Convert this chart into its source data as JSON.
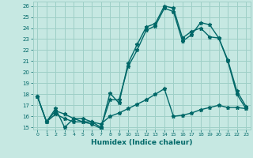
{
  "title": "",
  "xlabel": "Humidex (Indice chaleur)",
  "xlim": [
    -0.5,
    23.5
  ],
  "ylim": [
    14.8,
    26.4
  ],
  "xticks": [
    0,
    1,
    2,
    3,
    4,
    5,
    6,
    7,
    8,
    9,
    10,
    11,
    12,
    13,
    14,
    15,
    16,
    17,
    18,
    19,
    20,
    21,
    22,
    23
  ],
  "yticks": [
    15,
    16,
    17,
    18,
    19,
    20,
    21,
    22,
    23,
    24,
    25,
    26
  ],
  "bg_color": "#c6e8e2",
  "grid_color": "#9ecfc7",
  "line_color": "#006868",
  "line1_x": [
    0,
    1,
    2,
    3,
    4,
    5,
    6,
    7,
    8,
    9,
    10,
    11,
    12,
    13,
    14,
    15,
    16,
    17,
    18,
    19,
    20,
    21,
    22,
    23
  ],
  "line1_y": [
    17.8,
    15.5,
    16.7,
    15.0,
    15.8,
    15.5,
    15.3,
    14.9,
    18.1,
    17.2,
    20.8,
    22.5,
    24.1,
    24.4,
    26.0,
    25.8,
    23.1,
    23.7,
    24.0,
    23.2,
    23.1,
    21.1,
    18.3,
    16.9
  ],
  "line2_x": [
    0,
    1,
    2,
    3,
    4,
    5,
    6,
    7,
    8,
    9,
    10,
    11,
    12,
    13,
    14,
    15,
    16,
    17,
    18,
    19,
    20,
    21,
    22,
    23
  ],
  "line2_y": [
    17.8,
    15.5,
    16.5,
    16.2,
    15.8,
    15.8,
    15.5,
    15.0,
    17.5,
    17.5,
    20.5,
    22.0,
    23.8,
    24.2,
    25.8,
    25.5,
    22.8,
    23.4,
    24.5,
    24.3,
    23.1,
    21.0,
    18.0,
    16.7
  ],
  "line3_x": [
    0,
    1,
    2,
    3,
    4,
    5,
    6,
    7,
    8,
    9,
    10,
    11,
    12,
    13,
    14,
    15,
    16,
    17,
    18,
    19,
    20,
    21,
    22,
    23
  ],
  "line3_y": [
    17.8,
    15.5,
    16.2,
    15.8,
    15.5,
    15.5,
    15.5,
    15.3,
    16.0,
    16.3,
    16.7,
    17.1,
    17.5,
    18.0,
    18.5,
    16.0,
    16.1,
    16.3,
    16.6,
    16.8,
    17.0,
    16.8,
    16.8,
    16.7
  ],
  "marker": "*",
  "markersize": 3.5,
  "linewidth": 1.0
}
